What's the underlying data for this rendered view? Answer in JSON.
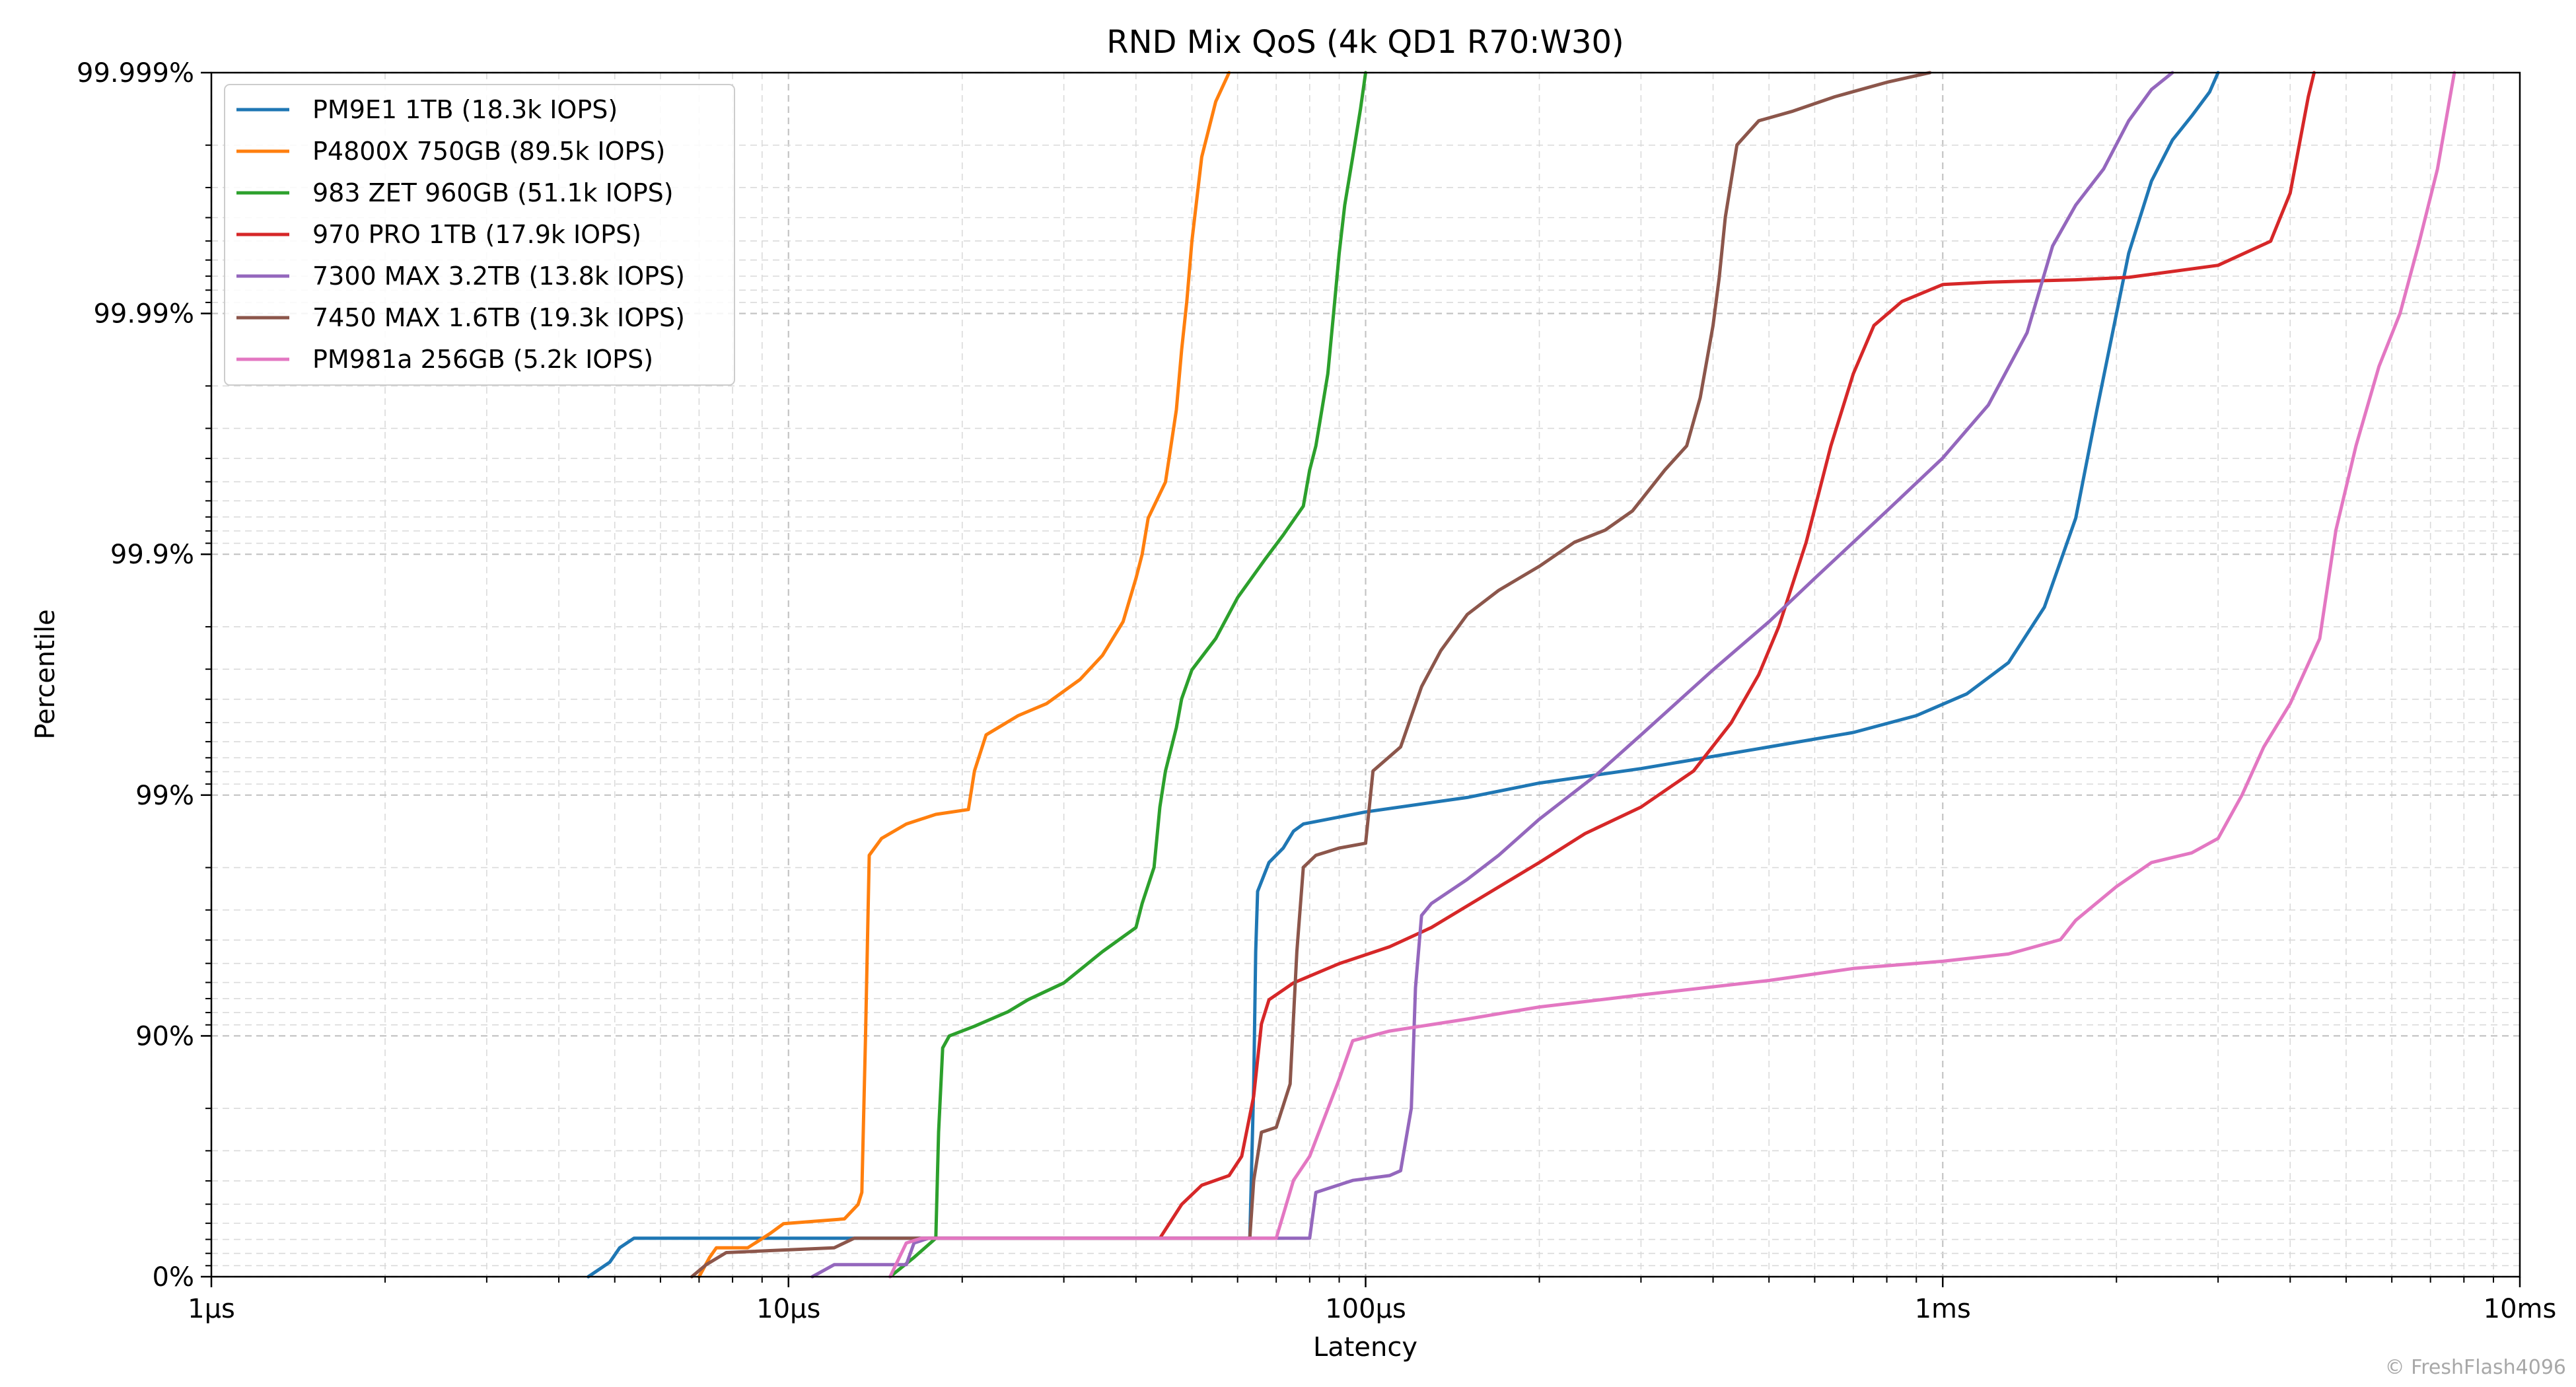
{
  "chart_data": {
    "type": "line",
    "title": "RND Mix QoS (4k QD1 R70:W30)",
    "xlabel": "Latency",
    "ylabel": "Percentile",
    "x_scale": "log",
    "y_scale": "log-nines",
    "x_range_us": [
      1,
      10000
    ],
    "y_range_nines": [
      0,
      5
    ],
    "x_ticks": [
      {
        "value_us": 1,
        "label": "1µs"
      },
      {
        "value_us": 10,
        "label": "10µs"
      },
      {
        "value_us": 100,
        "label": "100µs"
      },
      {
        "value_us": 1000,
        "label": "1ms"
      },
      {
        "value_us": 10000,
        "label": "10ms"
      }
    ],
    "y_ticks": [
      {
        "nines": 0,
        "label": "0%"
      },
      {
        "nines": 1,
        "label": "90%"
      },
      {
        "nines": 2,
        "label": "99%"
      },
      {
        "nines": 3,
        "label": "99.9%"
      },
      {
        "nines": 4,
        "label": "99.99%"
      },
      {
        "nines": 5,
        "label": "99.999%"
      }
    ],
    "grid": true,
    "legend_position": "top-left",
    "watermark": "© FreshFlash4096",
    "series": [
      {
        "name": "PM9E1 1TB (18.3k IOPS)",
        "color": "#1f77b4",
        "points": [
          [
            4.5,
            0
          ],
          [
            4.9,
            0.06
          ],
          [
            5.1,
            0.12
          ],
          [
            5.4,
            0.16
          ],
          [
            63,
            0.16
          ],
          [
            64,
            0.8
          ],
          [
            64.5,
            1.35
          ],
          [
            65,
            1.6
          ],
          [
            68,
            1.72
          ],
          [
            72,
            1.78
          ],
          [
            75,
            1.85
          ],
          [
            78,
            1.88
          ],
          [
            100,
            1.93
          ],
          [
            150,
            1.99
          ],
          [
            200,
            2.05
          ],
          [
            300,
            2.11
          ],
          [
            500,
            2.2
          ],
          [
            700,
            2.26
          ],
          [
            900,
            2.33
          ],
          [
            1100,
            2.42
          ],
          [
            1300,
            2.55
          ],
          [
            1500,
            2.78
          ],
          [
            1700,
            3.15
          ],
          [
            1850,
            3.6
          ],
          [
            2000,
            4.0
          ],
          [
            2100,
            4.25
          ],
          [
            2300,
            4.55
          ],
          [
            2500,
            4.72
          ],
          [
            2700,
            4.82
          ],
          [
            2900,
            4.92
          ],
          [
            3000,
            5.0
          ]
        ]
      },
      {
        "name": "P4800X 750GB (89.5k IOPS)",
        "color": "#ff7f0e",
        "points": [
          [
            7,
            0
          ],
          [
            7.3,
            0.08
          ],
          [
            7.5,
            0.12
          ],
          [
            8.5,
            0.12
          ],
          [
            9.3,
            0.18
          ],
          [
            9.8,
            0.22
          ],
          [
            12.5,
            0.24
          ],
          [
            13.2,
            0.3
          ],
          [
            13.4,
            0.35
          ],
          [
            13.6,
            1.0
          ],
          [
            13.8,
            1.75
          ],
          [
            14.5,
            1.82
          ],
          [
            16,
            1.88
          ],
          [
            18,
            1.92
          ],
          [
            20.5,
            1.94
          ],
          [
            21,
            2.1
          ],
          [
            22,
            2.25
          ],
          [
            25,
            2.33
          ],
          [
            28,
            2.38
          ],
          [
            32,
            2.48
          ],
          [
            35,
            2.58
          ],
          [
            38,
            2.72
          ],
          [
            40,
            2.9
          ],
          [
            41,
            3.0
          ],
          [
            42,
            3.15
          ],
          [
            45,
            3.3
          ],
          [
            46,
            3.45
          ],
          [
            47,
            3.6
          ],
          [
            48,
            3.85
          ],
          [
            49,
            4.05
          ],
          [
            50,
            4.3
          ],
          [
            52,
            4.65
          ],
          [
            55,
            4.88
          ],
          [
            58,
            5.0
          ]
        ]
      },
      {
        "name": "983 ZET 960GB (51.1k IOPS)",
        "color": "#2ca02c",
        "points": [
          [
            15,
            0
          ],
          [
            16.5,
            0.08
          ],
          [
            18,
            0.16
          ],
          [
            18.2,
            0.6
          ],
          [
            18.5,
            0.95
          ],
          [
            19,
            1.0
          ],
          [
            21,
            1.04
          ],
          [
            24,
            1.1
          ],
          [
            26,
            1.15
          ],
          [
            30,
            1.22
          ],
          [
            35,
            1.35
          ],
          [
            40,
            1.45
          ],
          [
            41,
            1.55
          ],
          [
            43,
            1.7
          ],
          [
            44,
            1.95
          ],
          [
            45,
            2.1
          ],
          [
            47,
            2.28
          ],
          [
            48,
            2.4
          ],
          [
            50,
            2.52
          ],
          [
            55,
            2.65
          ],
          [
            60,
            2.82
          ],
          [
            67,
            2.98
          ],
          [
            72,
            3.08
          ],
          [
            78,
            3.2
          ],
          [
            80,
            3.35
          ],
          [
            82,
            3.45
          ],
          [
            84,
            3.6
          ],
          [
            86,
            3.75
          ],
          [
            88,
            4.0
          ],
          [
            90,
            4.25
          ],
          [
            92,
            4.45
          ],
          [
            95,
            4.65
          ],
          [
            98,
            4.85
          ],
          [
            100,
            5.0
          ]
        ]
      },
      {
        "name": "970 PRO 1TB (17.9k IOPS)",
        "color": "#d62728",
        "points": [
          [
            44,
            0.16
          ],
          [
            48,
            0.3
          ],
          [
            52,
            0.38
          ],
          [
            58,
            0.42
          ],
          [
            61,
            0.5
          ],
          [
            64,
            0.75
          ],
          [
            66,
            1.05
          ],
          [
            68,
            1.15
          ],
          [
            75,
            1.22
          ],
          [
            90,
            1.3
          ],
          [
            110,
            1.37
          ],
          [
            130,
            1.45
          ],
          [
            160,
            1.58
          ],
          [
            200,
            1.72
          ],
          [
            240,
            1.84
          ],
          [
            300,
            1.95
          ],
          [
            370,
            2.1
          ],
          [
            430,
            2.3
          ],
          [
            480,
            2.5
          ],
          [
            520,
            2.7
          ],
          [
            580,
            3.05
          ],
          [
            640,
            3.45
          ],
          [
            700,
            3.75
          ],
          [
            760,
            3.95
          ],
          [
            850,
            4.05
          ],
          [
            1000,
            4.12
          ],
          [
            1200,
            4.13
          ],
          [
            1700,
            4.14
          ],
          [
            2100,
            4.15
          ],
          [
            3000,
            4.2
          ],
          [
            3700,
            4.3
          ],
          [
            4000,
            4.5
          ],
          [
            4300,
            4.9
          ],
          [
            4400,
            5.0
          ]
        ]
      },
      {
        "name": "7300 MAX 3.2TB (13.8k IOPS)",
        "color": "#9467bd",
        "points": [
          [
            11,
            0
          ],
          [
            12,
            0.05
          ],
          [
            16,
            0.05
          ],
          [
            16.5,
            0.14
          ],
          [
            17.5,
            0.16
          ],
          [
            80,
            0.16
          ],
          [
            82,
            0.35
          ],
          [
            95,
            0.4
          ],
          [
            110,
            0.42
          ],
          [
            115,
            0.44
          ],
          [
            120,
            0.7
          ],
          [
            122,
            1.2
          ],
          [
            125,
            1.5
          ],
          [
            130,
            1.55
          ],
          [
            150,
            1.65
          ],
          [
            170,
            1.75
          ],
          [
            200,
            1.9
          ],
          [
            250,
            2.08
          ],
          [
            300,
            2.25
          ],
          [
            400,
            2.52
          ],
          [
            500,
            2.72
          ],
          [
            600,
            2.9
          ],
          [
            700,
            3.05
          ],
          [
            800,
            3.18
          ],
          [
            1000,
            3.4
          ],
          [
            1200,
            3.62
          ],
          [
            1400,
            3.92
          ],
          [
            1550,
            4.28
          ],
          [
            1700,
            4.45
          ],
          [
            1900,
            4.6
          ],
          [
            2100,
            4.8
          ],
          [
            2300,
            4.93
          ],
          [
            2500,
            5.0
          ]
        ]
      },
      {
        "name": "7450 MAX 1.6TB (19.3k IOPS)",
        "color": "#8c564b",
        "points": [
          [
            6.8,
            0
          ],
          [
            7.2,
            0.05
          ],
          [
            7.8,
            0.1
          ],
          [
            12,
            0.12
          ],
          [
            13,
            0.16
          ],
          [
            63,
            0.16
          ],
          [
            64,
            0.4
          ],
          [
            66,
            0.6
          ],
          [
            70,
            0.62
          ],
          [
            74,
            0.8
          ],
          [
            76,
            1.35
          ],
          [
            78,
            1.7
          ],
          [
            82,
            1.75
          ],
          [
            90,
            1.78
          ],
          [
            100,
            1.8
          ],
          [
            103,
            2.1
          ],
          [
            115,
            2.2
          ],
          [
            125,
            2.45
          ],
          [
            135,
            2.6
          ],
          [
            150,
            2.75
          ],
          [
            170,
            2.85
          ],
          [
            200,
            2.95
          ],
          [
            230,
            3.05
          ],
          [
            260,
            3.1
          ],
          [
            290,
            3.18
          ],
          [
            330,
            3.35
          ],
          [
            360,
            3.45
          ],
          [
            380,
            3.65
          ],
          [
            400,
            3.95
          ],
          [
            410,
            4.15
          ],
          [
            420,
            4.4
          ],
          [
            440,
            4.7
          ],
          [
            480,
            4.8
          ],
          [
            550,
            4.84
          ],
          [
            650,
            4.9
          ],
          [
            800,
            4.96
          ],
          [
            950,
            5.0
          ]
        ]
      },
      {
        "name": "PM981a 256GB (5.2k IOPS)",
        "color": "#e377c2",
        "points": [
          [
            15,
            0
          ],
          [
            16,
            0.14
          ],
          [
            17,
            0.16
          ],
          [
            70,
            0.16
          ],
          [
            75,
            0.4
          ],
          [
            80,
            0.5
          ],
          [
            90,
            0.82
          ],
          [
            95,
            0.98
          ],
          [
            110,
            1.02
          ],
          [
            150,
            1.07
          ],
          [
            200,
            1.12
          ],
          [
            300,
            1.17
          ],
          [
            500,
            1.23
          ],
          [
            700,
            1.28
          ],
          [
            1000,
            1.31
          ],
          [
            1300,
            1.34
          ],
          [
            1600,
            1.4
          ],
          [
            1700,
            1.48
          ],
          [
            2000,
            1.62
          ],
          [
            2300,
            1.72
          ],
          [
            2700,
            1.76
          ],
          [
            3000,
            1.82
          ],
          [
            3300,
            2.0
          ],
          [
            3600,
            2.2
          ],
          [
            4000,
            2.38
          ],
          [
            4500,
            2.65
          ],
          [
            4800,
            3.1
          ],
          [
            5200,
            3.45
          ],
          [
            5700,
            3.78
          ],
          [
            6200,
            4.0
          ],
          [
            6700,
            4.3
          ],
          [
            7200,
            4.6
          ],
          [
            7700,
            5.0
          ]
        ]
      }
    ]
  }
}
